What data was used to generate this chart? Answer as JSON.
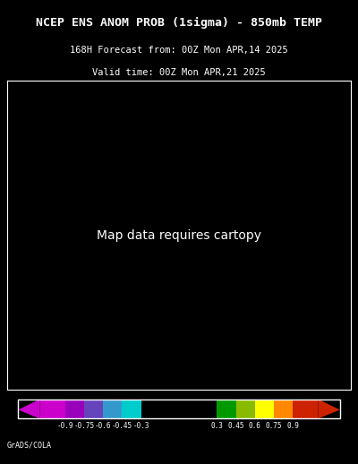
{
  "title_line1": "NCEP ENS ANOM PROB (1sigma) - 850mb TEMP",
  "title_line2": "168H Forecast from: 00Z Mon APR,14 2025",
  "title_line3": "Valid time: 00Z Mon APR,21 2025",
  "colorbar_values": [
    "-0.9",
    "-0.75",
    "-0.6",
    "-0.45",
    "-0.3",
    "0.3",
    "0.45",
    "0.6",
    "0.75",
    "0.9"
  ],
  "colorbar_colors": [
    "#9B00FF",
    "#7B00CC",
    "#6666CC",
    "#00CCCC",
    "#000000",
    "#00AA00",
    "#88CC00",
    "#FFFF00",
    "#FFA500",
    "#CC3300",
    "#FF0000"
  ],
  "background_color": "#000000",
  "map_border_color": "#ffffff",
  "title_color": "#ffffff",
  "colorbar_text_color": "#ffffff",
  "footer_text": "GrADS/COLA",
  "footer_color": "#ffffff",
  "fig_width": 4.0,
  "fig_height": 5.18,
  "dpi": 100
}
